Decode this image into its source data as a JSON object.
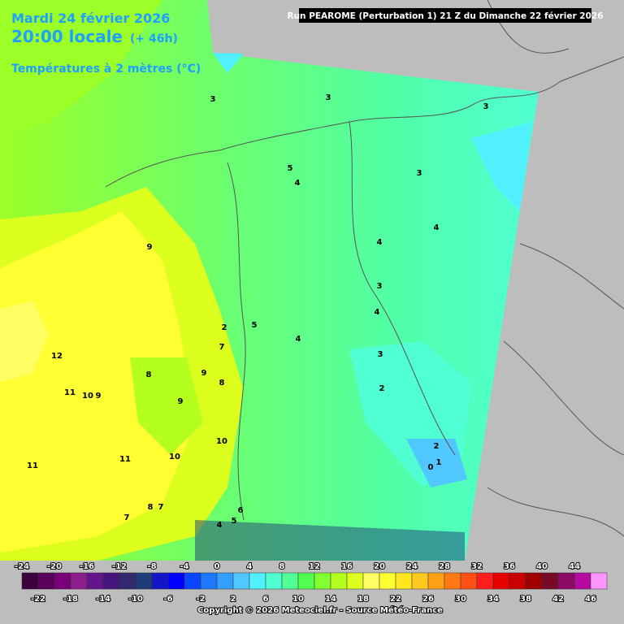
{
  "header": {
    "date": "Mardi 24 février 2026",
    "time": "20:00 locale",
    "lead": "(+ 46h)",
    "parameter": "Températures à 2 mètres (°C)",
    "run": "Run PEAROME (Perturbation 1) 21 Z du Dimanche 22 février 2026"
  },
  "footer": {
    "copyright": "Copyright © 2026 Meteociel.fr - Source Météo-France"
  },
  "legend": {
    "ticks": [
      -24,
      -22,
      -20,
      -18,
      -16,
      -14,
      -12,
      -10,
      -8,
      -6,
      -4,
      -2,
      0,
      2,
      4,
      6,
      8,
      10,
      12,
      14,
      16,
      18,
      20,
      22,
      24,
      26,
      28,
      30,
      32,
      34,
      36,
      38,
      40,
      42,
      44,
      46
    ],
    "colors": [
      "#3c003c",
      "#5a005a",
      "#780078",
      "#8c1e8c",
      "#64148c",
      "#46147d",
      "#32286e",
      "#1e3c78",
      "#1414c8",
      "#0000ff",
      "#0a46ff",
      "#1e78ff",
      "#32a0ff",
      "#50c8ff",
      "#50f0ff",
      "#50ffd2",
      "#50ff96",
      "#50ff50",
      "#82ff32",
      "#b4ff1e",
      "#dcff1e",
      "#ffff64",
      "#ffff32",
      "#ffe61e",
      "#ffc81e",
      "#ffa014",
      "#ff7814",
      "#ff5014",
      "#ff1e1e",
      "#e60000",
      "#c80000",
      "#a00000",
      "#780a28",
      "#8c0a64",
      "#b40aa0",
      "#ff96ff"
    ]
  },
  "contour_labels": [
    "3",
    "3",
    "3",
    "5",
    "4",
    "3",
    "4",
    "4",
    "9",
    "3",
    "4",
    "5",
    "2",
    "4",
    "3",
    "12",
    "7",
    "8",
    "9",
    "8",
    "2",
    "11",
    "10",
    "9",
    "9",
    "10",
    "2",
    "11",
    "10",
    "11",
    "1",
    "0",
    "8",
    "7",
    "7",
    "6",
    "5",
    "4"
  ]
}
